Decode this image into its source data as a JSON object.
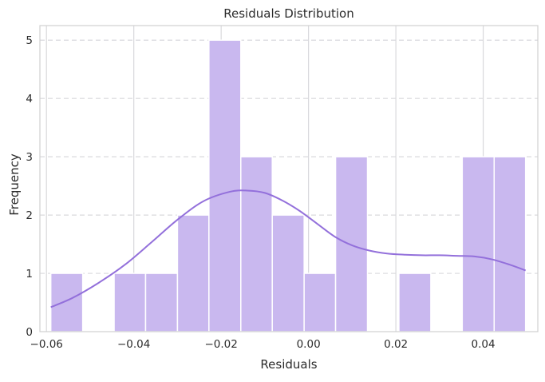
{
  "chart_data": {
    "type": "bar",
    "title": "Residuals Distribution",
    "xlabel": "Residuals",
    "ylabel": "Frequency",
    "xlim": [
      -0.0615,
      0.0525
    ],
    "ylim": [
      0,
      5.25
    ],
    "x_ticks": [
      -0.06,
      -0.04,
      -0.02,
      0.0,
      0.02,
      0.04
    ],
    "x_tick_labels": [
      "−0.06",
      "−0.04",
      "−0.02",
      "0.00",
      "0.02",
      "0.04"
    ],
    "y_ticks": [
      0,
      1,
      2,
      3,
      4,
      5
    ],
    "y_tick_labels": [
      "0",
      "1",
      "2",
      "3",
      "4",
      "5"
    ],
    "grid": {
      "vertical_solid": true,
      "horizontal_dashed": true
    },
    "bins": [
      {
        "left": -0.059,
        "right": -0.0517,
        "count": 1
      },
      {
        "left": -0.0517,
        "right": -0.0445,
        "count": 0
      },
      {
        "left": -0.0445,
        "right": -0.0373,
        "count": 1
      },
      {
        "left": -0.0373,
        "right": -0.03,
        "count": 1
      },
      {
        "left": -0.03,
        "right": -0.0228,
        "count": 2
      },
      {
        "left": -0.0228,
        "right": -0.0155,
        "count": 5
      },
      {
        "left": -0.0155,
        "right": -0.0083,
        "count": 3
      },
      {
        "left": -0.0083,
        "right": -0.001,
        "count": 2
      },
      {
        "left": -0.001,
        "right": 0.0062,
        "count": 1
      },
      {
        "left": 0.0062,
        "right": 0.0135,
        "count": 3
      },
      {
        "left": 0.0135,
        "right": 0.0207,
        "count": 0
      },
      {
        "left": 0.0207,
        "right": 0.028,
        "count": 1
      },
      {
        "left": 0.028,
        "right": 0.0352,
        "count": 0
      },
      {
        "left": 0.0352,
        "right": 0.0425,
        "count": 3
      },
      {
        "left": 0.0425,
        "right": 0.0497,
        "count": 3
      }
    ],
    "kde": {
      "x": [
        -0.059,
        -0.054,
        -0.048,
        -0.042,
        -0.036,
        -0.03,
        -0.024,
        -0.018,
        -0.014,
        -0.01,
        -0.006,
        -0.002,
        0.002,
        0.006,
        0.01,
        0.014,
        0.018,
        0.022,
        0.026,
        0.03,
        0.034,
        0.038,
        0.042,
        0.046,
        0.0497
      ],
      "y": [
        0.42,
        0.58,
        0.84,
        1.15,
        1.53,
        1.92,
        2.24,
        2.4,
        2.42,
        2.38,
        2.25,
        2.07,
        1.85,
        1.63,
        1.48,
        1.39,
        1.34,
        1.32,
        1.31,
        1.31,
        1.3,
        1.29,
        1.24,
        1.15,
        1.05
      ]
    },
    "colors": {
      "bar_fill": "#c9b8ef",
      "bar_edge": "#ffffff",
      "kde_line": "#9370db",
      "grid": "#d8d8dc",
      "axes_edge": "#d0d0d0"
    }
  }
}
